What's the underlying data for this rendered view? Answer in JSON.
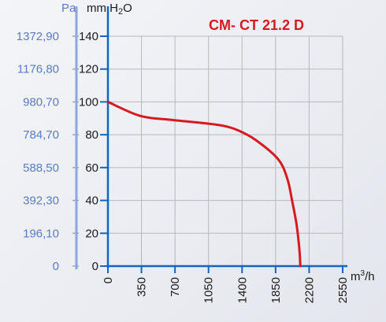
{
  "chart_data": {
    "type": "line",
    "title": "CM- CT 21.2 D",
    "pa_label": "Pa",
    "y_label_prefix": "mm H",
    "y_label_sub": "2",
    "y_label_suffix": "O",
    "x_label_base": "m",
    "x_label_sup": "3",
    "x_label_suffix": "/h",
    "x_ticks": [
      "0",
      "350",
      "700",
      "1050",
      "1400",
      "1850",
      "2200",
      "2550"
    ],
    "y_ticks": [
      "0",
      "20",
      "40",
      "60",
      "80",
      "100",
      "120",
      "140"
    ],
    "pa_ticks": [
      "0",
      "196,10",
      "392,30",
      "588,50",
      "784,70",
      "980,70",
      "1176,80",
      "1372,90"
    ],
    "xlim": [
      0,
      2550
    ],
    "ylim": [
      0,
      140
    ],
    "grid": true,
    "series": [
      {
        "color": "#d71920",
        "x": [
          0,
          350,
          700,
          1050,
          1250,
          1400,
          1600,
          1850,
          1950,
          2000,
          2050,
          2080,
          2090
        ],
        "y": [
          100,
          91.5,
          89,
          87,
          85.5,
          83,
          77,
          65,
          53,
          40,
          25,
          10,
          0
        ]
      }
    ]
  },
  "colors": {
    "axis": "#1565c0",
    "pa_axis": "#8ea6d8",
    "grid": "#b8b8b8",
    "curve": "#d71920"
  }
}
